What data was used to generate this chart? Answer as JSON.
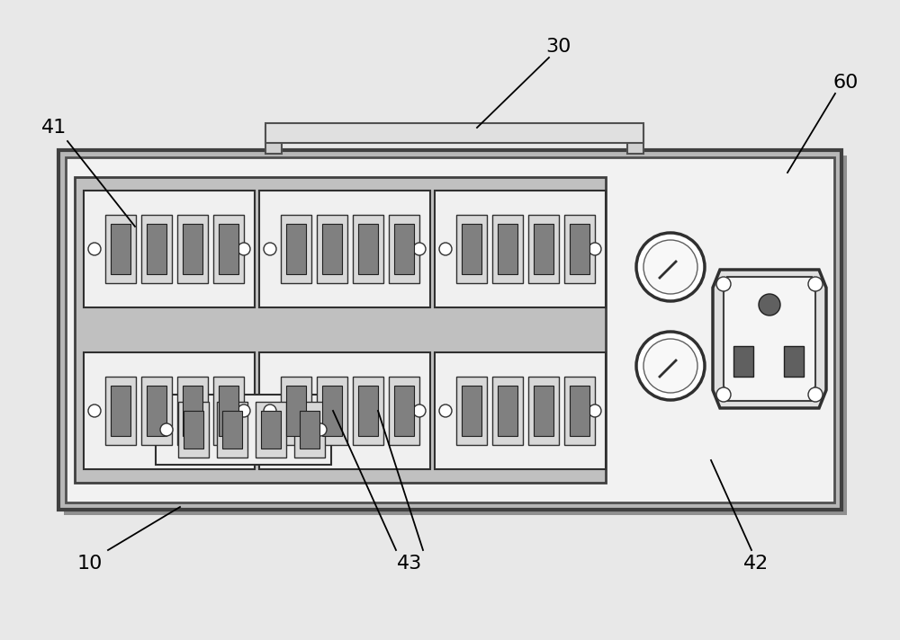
{
  "bg_color": "#e8e8e8",
  "face_color": "#f2f2f2",
  "chassis_color": "#b8b8b8",
  "dark": "#303030",
  "mid": "#888888",
  "light": "#d8d8d8",
  "label_fontsize": 16,
  "figsize": [
    10.0,
    7.12
  ]
}
